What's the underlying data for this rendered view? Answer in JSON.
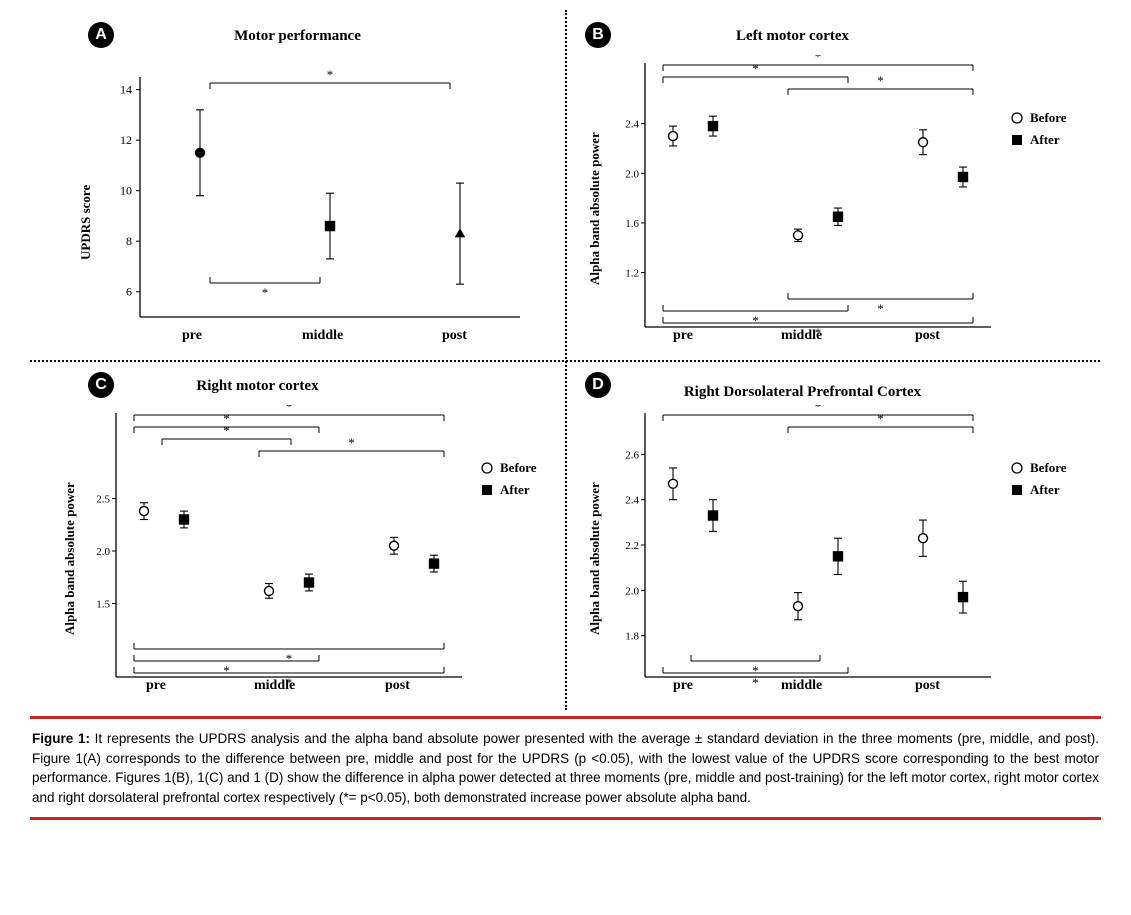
{
  "figure": {
    "caption_lead": "Figure 1:",
    "caption_body": " It represents the UPDRS analysis and the alpha band absolute power presented with the average ± standard deviation in the three moments (pre, middle, and post). Figure 1(A) corresponds to the difference between pre, middle and post for the UPDRS (p <0.05), with the lowest value of the UPDRS score corresponding to the best motor performance. Figures 1(B), 1(C) and 1 (D) show the difference in alpha power detected at three moments (pre, middle and post-training) for the left motor cortex, right motor cortex and right dorsolateral prefrontal cortex respectively (*= p<0.05), both demonstrated increase power absolute alpha band.",
    "rule_color": "#c62828",
    "divider_style": "dotted"
  },
  "legend": {
    "before": "Before",
    "after": "After"
  },
  "xlabels": {
    "pre": "pre",
    "middle": "middle",
    "post": "post"
  },
  "panelA": {
    "badge": "A",
    "title": "Motor performance",
    "ylabel": "UPDRS score",
    "ylim": [
      5,
      14.5
    ],
    "yticks": [
      6,
      8,
      10,
      12,
      14
    ],
    "points": [
      {
        "x": "pre",
        "shape": "circle",
        "y": 11.5,
        "err": 1.7
      },
      {
        "x": "middle",
        "shape": "square",
        "y": 8.6,
        "err": 1.3
      },
      {
        "x": "post",
        "shape": "triangle",
        "y": 8.3,
        "err": 2.0
      }
    ],
    "sig": [
      {
        "from": "pre",
        "to": "post",
        "pos": "top"
      },
      {
        "from": "pre",
        "to": "middle",
        "pos": "bottom"
      }
    ]
  },
  "panelB": {
    "badge": "B",
    "title": "Left motor cortex",
    "ylabel": "Alpha band absolute power",
    "ylim": [
      1.1,
      2.55
    ],
    "yticks": [
      1.2,
      1.6,
      2.0,
      2.4
    ],
    "series": {
      "before": [
        {
          "x": "pre",
          "y": 2.3,
          "err": 0.08
        },
        {
          "x": "middle",
          "y": 1.5,
          "err": 0.05
        },
        {
          "x": "post",
          "y": 2.25,
          "err": 0.1
        }
      ],
      "after": [
        {
          "x": "pre",
          "y": 2.38,
          "err": 0.08
        },
        {
          "x": "middle",
          "y": 1.65,
          "err": 0.07
        },
        {
          "x": "post",
          "y": 1.97,
          "err": 0.08
        }
      ]
    },
    "sig_top": [
      {
        "from": "pre",
        "to": "post",
        "level": 0
      },
      {
        "from": "pre",
        "to": "middle",
        "level": 1
      },
      {
        "from": "middle",
        "to": "post",
        "level": 2
      }
    ],
    "sig_bot": [
      {
        "from": "middle",
        "to": "post",
        "level": 0
      },
      {
        "from": "pre",
        "to": "middle",
        "level": 1
      },
      {
        "from": "pre",
        "to": "post",
        "level": 2
      }
    ]
  },
  "panelC": {
    "badge": "C",
    "title": "Right motor cortex",
    "ylabel": "Alpha band absolute power",
    "ylim": [
      1.2,
      2.8
    ],
    "yticks": [
      1.5,
      2.0,
      2.5
    ],
    "series": {
      "before": [
        {
          "x": "pre",
          "y": 2.38,
          "err": 0.08
        },
        {
          "x": "middle",
          "y": 1.62,
          "err": 0.07
        },
        {
          "x": "post",
          "y": 2.05,
          "err": 0.08
        }
      ],
      "after": [
        {
          "x": "pre",
          "y": 2.3,
          "err": 0.08
        },
        {
          "x": "middle",
          "y": 1.7,
          "err": 0.08
        },
        {
          "x": "post",
          "y": 1.88,
          "err": 0.08
        }
      ]
    },
    "sig_top": [
      {
        "from": "pre",
        "to": "post",
        "level": 0
      },
      {
        "from": "pre",
        "to": "middle",
        "level": 1
      },
      {
        "from": "pre",
        "to": "middle",
        "level": 2,
        "short": true
      },
      {
        "from": "middle",
        "to": "post",
        "level": 3
      }
    ],
    "sig_bot": [
      {
        "from": "pre",
        "to": "post",
        "level": 0
      },
      {
        "from": "pre",
        "to": "middle",
        "level": 1
      },
      {
        "from": "pre",
        "to": "post",
        "level": 2
      }
    ]
  },
  "panelD": {
    "badge": "D",
    "title": "Right Dorsolateral Prefrontal Cortex",
    "ylabel": "Alpha band absolute power",
    "ylim": [
      1.75,
      2.65
    ],
    "yticks": [
      1.8,
      2.0,
      2.2,
      2.4,
      2.6
    ],
    "series": {
      "before": [
        {
          "x": "pre",
          "y": 2.47,
          "err": 0.07
        },
        {
          "x": "middle",
          "y": 1.93,
          "err": 0.06
        },
        {
          "x": "post",
          "y": 2.23,
          "err": 0.08
        }
      ],
      "after": [
        {
          "x": "pre",
          "y": 2.33,
          "err": 0.07
        },
        {
          "x": "middle",
          "y": 2.15,
          "err": 0.08
        },
        {
          "x": "post",
          "y": 1.97,
          "err": 0.07
        }
      ]
    },
    "sig_top": [
      {
        "from": "pre",
        "to": "post",
        "level": 0
      },
      {
        "from": "middle",
        "to": "post",
        "level": 1
      }
    ],
    "sig_bot": [
      {
        "from": "pre",
        "to": "middle",
        "level": 0,
        "short": true
      },
      {
        "from": "pre",
        "to": "middle",
        "level": 1
      }
    ]
  },
  "style": {
    "text_color": "#000000",
    "marker_size": 9,
    "err_cap": 6,
    "stroke": "#000000",
    "stroke_width": 1.2
  }
}
